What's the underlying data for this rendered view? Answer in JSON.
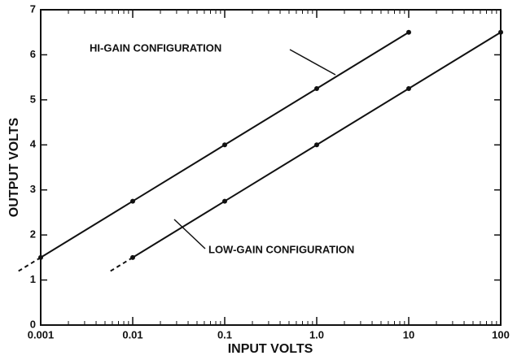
{
  "chart_data": {
    "type": "line",
    "xlabel": "INPUT VOLTS",
    "ylabel": "OUTPUT VOLTS",
    "log_x": true,
    "xlim": [
      0.001,
      100
    ],
    "xticks": [
      0.001,
      0.01,
      0.1,
      {
        "value": 1,
        "label": "1.0"
      },
      10,
      100
    ],
    "ylim": [
      0,
      7
    ],
    "yticks": [
      0,
      1,
      2,
      3,
      4,
      5,
      6,
      7
    ],
    "color": "#111111",
    "annotations": [
      "HI-GAIN CONFIGURATION",
      "LOW-GAIN CONFIGURATION"
    ],
    "series": [
      {
        "name": "HI-GAIN CONFIGURATION",
        "color": "#111111",
        "x": [
          0.001,
          0.01,
          0.1,
          1,
          10
        ],
        "values": [
          1.5,
          2.75,
          4.0,
          5.25,
          6.5
        ]
      },
      {
        "name": "LOW-GAIN CONFIGURATION",
        "color": "#111111",
        "x": [
          0.01,
          0.1,
          1,
          10,
          100
        ],
        "values": [
          1.5,
          2.75,
          4.0,
          5.25,
          6.5
        ]
      }
    ]
  }
}
